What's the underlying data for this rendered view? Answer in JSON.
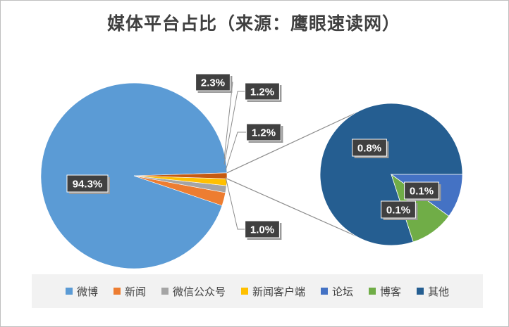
{
  "chart_data": {
    "type": "pie",
    "title": "媒体平台占比（来源：鹰眼速读网）",
    "subtype": "pie-of-pie",
    "slices": [
      {
        "label": "微博",
        "value": 94.3,
        "color": "#5b9bd5"
      },
      {
        "label": "新闻",
        "value": 2.3,
        "color": "#ed7d31"
      },
      {
        "label": "微信公众号",
        "value": 1.2,
        "color": "#a5a5a5"
      },
      {
        "label": "新闻客户端",
        "value": 1.2,
        "color": "#ffc000"
      },
      {
        "label": "论坛",
        "value": 0.1,
        "color": "#4472c4"
      },
      {
        "label": "博客",
        "value": 0.1,
        "color": "#70ad47"
      },
      {
        "label": "其他",
        "value": 0.8,
        "color": "#255e91"
      }
    ],
    "main_pie_labels": [
      "94.3%",
      "2.3%",
      "1.2%",
      "1.2%",
      "1.0%"
    ],
    "secondary_pie": {
      "categories": [
        "其他",
        "论坛",
        "博客"
      ],
      "labels": [
        "0.8%",
        "0.1%",
        "0.1%"
      ]
    },
    "legend_position": "bottom"
  }
}
